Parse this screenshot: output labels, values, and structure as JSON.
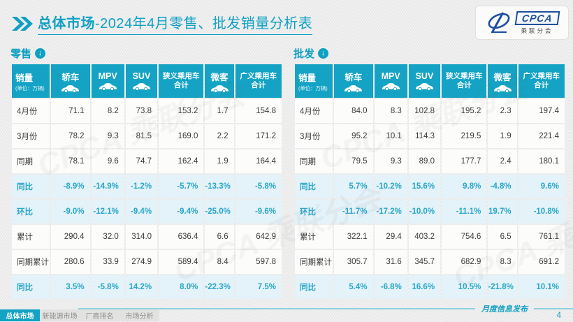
{
  "header": {
    "title_bold": "总体市场",
    "title_rest": "-2024年4月零售、批发销量分析表",
    "logo": {
      "text": "CPCA",
      "subtext": "乘联分会"
    }
  },
  "watermark_text": "CPCA 乘联分会",
  "tables": [
    {
      "id": "retail",
      "section_label": "零售",
      "columns": [
        {
          "label": "销量",
          "unit": "(单位：万辆)"
        },
        {
          "label": "轿车",
          "icon": "sedan-icon"
        },
        {
          "label": "MPV",
          "icon": "mpv-icon"
        },
        {
          "label": "SUV",
          "icon": "suv-icon"
        },
        {
          "label": "狭义乘用车",
          "line2": "合计"
        },
        {
          "label": "微客",
          "icon": "microvan-icon"
        },
        {
          "label": "广义乘用车",
          "line2": "合计"
        }
      ],
      "rows": [
        {
          "label": "4月份",
          "highlight": false,
          "values": [
            "71.1",
            "8.2",
            "73.8",
            "153.2",
            "1.7",
            "154.8"
          ]
        },
        {
          "label": "3月份",
          "highlight": false,
          "values": [
            "78.2",
            "9.3",
            "81.5",
            "169.0",
            "2.2",
            "171.2"
          ]
        },
        {
          "label": "同期",
          "highlight": false,
          "values": [
            "78.1",
            "9.6",
            "74.7",
            "162.4",
            "1.9",
            "164.4"
          ]
        },
        {
          "label": "同比",
          "highlight": true,
          "values": [
            "-8.9%",
            "-14.9%",
            "-1.2%",
            "-5.7%",
            "-13.3%",
            "-5.8%"
          ]
        },
        {
          "label": "环比",
          "highlight": true,
          "values": [
            "-9.0%",
            "-12.1%",
            "-9.4%",
            "-9.4%",
            "-25.0%",
            "-9.6%"
          ]
        },
        {
          "label": "累计",
          "highlight": false,
          "values": [
            "290.4",
            "32.0",
            "314.0",
            "636.4",
            "6.6",
            "642.9"
          ]
        },
        {
          "label": "同期累计",
          "highlight": false,
          "values": [
            "280.6",
            "33.9",
            "274.9",
            "589.4",
            "8.4",
            "597.8"
          ]
        },
        {
          "label": "同比",
          "highlight": true,
          "values": [
            "3.5%",
            "-5.8%",
            "14.2%",
            "8.0%",
            "-22.3%",
            "7.5%"
          ]
        }
      ]
    },
    {
      "id": "wholesale",
      "section_label": "批发",
      "columns": [
        {
          "label": "销量",
          "unit": "(单位：万辆)"
        },
        {
          "label": "轿车",
          "icon": "sedan-icon"
        },
        {
          "label": "MPV",
          "icon": "mpv-icon"
        },
        {
          "label": "SUV",
          "icon": "suv-icon"
        },
        {
          "label": "狭义乘用车",
          "line2": "合计"
        },
        {
          "label": "微客",
          "icon": "microvan-icon"
        },
        {
          "label": "广义乘用车",
          "line2": "合计"
        }
      ],
      "rows": [
        {
          "label": "4月份",
          "highlight": false,
          "values": [
            "84.0",
            "8.3",
            "102.8",
            "195.2",
            "2.3",
            "197.4"
          ]
        },
        {
          "label": "3月份",
          "highlight": false,
          "values": [
            "95.2",
            "10.1",
            "114.3",
            "219.5",
            "1.9",
            "221.4"
          ]
        },
        {
          "label": "同期",
          "highlight": false,
          "values": [
            "79.5",
            "9.3",
            "89.0",
            "177.7",
            "2.4",
            "180.1"
          ]
        },
        {
          "label": "同比",
          "highlight": true,
          "values": [
            "5.7%",
            "-10.2%",
            "15.6%",
            "9.8%",
            "-4.8%",
            "9.6%"
          ]
        },
        {
          "label": "环比",
          "highlight": true,
          "values": [
            "-11.7%",
            "-17.2%",
            "-10.0%",
            "-11.1%",
            "19.7%",
            "-10.8%"
          ]
        },
        {
          "label": "累计",
          "highlight": false,
          "values": [
            "322.1",
            "29.4",
            "403.2",
            "754.6",
            "6.5",
            "761.1"
          ]
        },
        {
          "label": "同期累计",
          "highlight": false,
          "values": [
            "305.7",
            "31.6",
            "345.7",
            "682.9",
            "8.3",
            "691.2"
          ]
        },
        {
          "label": "同比",
          "highlight": true,
          "values": [
            "5.4%",
            "-6.8%",
            "16.6%",
            "10.5%",
            "-21.8%",
            "10.1%"
          ]
        }
      ]
    }
  ],
  "footer": {
    "tabs": [
      {
        "label": "总体市场",
        "active": true
      },
      {
        "label": "新能源市场",
        "active": false
      },
      {
        "label": "厂商排名",
        "active": false
      },
      {
        "label": "市场分析",
        "active": false
      }
    ],
    "release_label": "月度信息发布",
    "page_number": "4"
  },
  "colors": {
    "accent": "#14a3c4",
    "highlight_bg": "#e4f2f9",
    "page_bg": "#ededed",
    "title": "#0fa0c2"
  }
}
